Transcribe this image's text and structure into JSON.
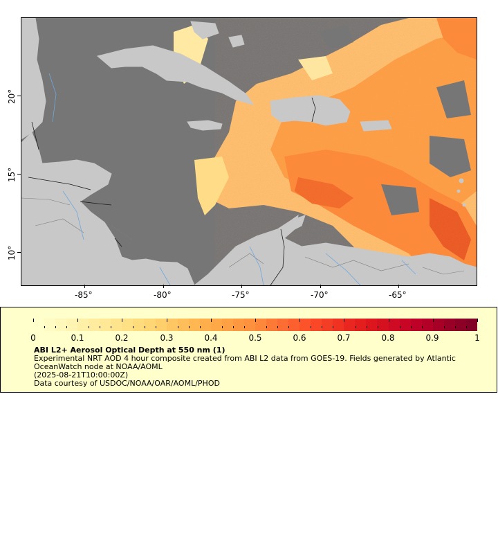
{
  "map": {
    "colors": {
      "ocean": "#767676",
      "land": "#c8c8c8",
      "rivers": "#6fa8dc",
      "borders": "#000000",
      "states": "#808080"
    },
    "x_ticks": [
      "-85°",
      "-80°",
      "-75°",
      "-70°",
      "-65°"
    ],
    "y_ticks": [
      "20°",
      "15°",
      "10°"
    ]
  },
  "legend": {
    "colorbar_ticks": [
      "0",
      "0.1",
      "0.2",
      "0.3",
      "0.4",
      "0.5",
      "0.6",
      "0.7",
      "0.8",
      "0.9",
      "1"
    ],
    "colormap": [
      "#ffffcc",
      "#ffeda0",
      "#fed976",
      "#feb24c",
      "#fd8d3c",
      "#fc4e2a",
      "#e31a1c",
      "#bd0026",
      "#800026"
    ],
    "title": "ABI L2+ Aerosol Optical Depth at 550 nm (1)",
    "description": "Experimental NRT AOD 4 hour composite created from ABI L2 data from GOES-19. Fields generated by Atlantic OceanWatch node at NOAA/AOML",
    "timestamp": "(2025-08-21T10:00:00Z)",
    "credit": "Data courtesy of USDOC/NOAA/OAR/AOML/PHOD"
  }
}
